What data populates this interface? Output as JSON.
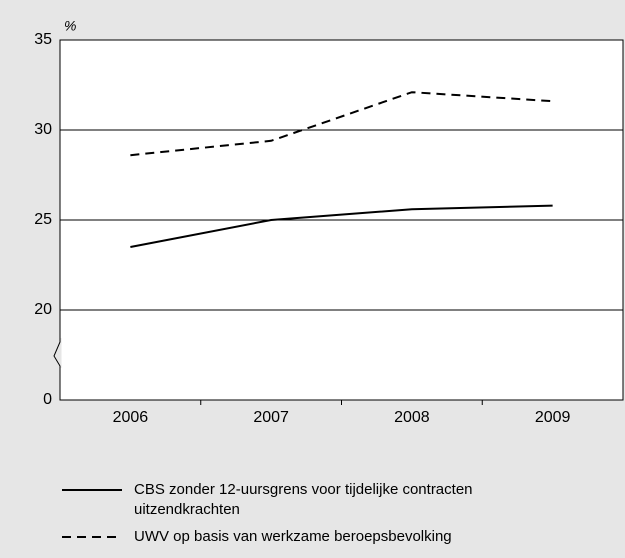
{
  "chart_data": {
    "type": "line",
    "y_unit_label": "%",
    "categories": [
      "2006",
      "2007",
      "2008",
      "2009"
    ],
    "series": [
      {
        "name": "CBS zonder 12-uursgrens voor tijdelijke contracten uitzendkrachten",
        "color": "#000000",
        "dashed": false,
        "values": [
          23.5,
          25.0,
          25.6,
          25.8
        ]
      },
      {
        "name": "UWV op basis van werkzame beroepsbevolking",
        "color": "#000000",
        "dashed": true,
        "values": [
          28.6,
          29.4,
          32.1,
          31.6
        ]
      }
    ],
    "ylim": [
      0,
      35
    ],
    "yticks": [
      0,
      20,
      25,
      30,
      35
    ],
    "axis_break": [
      0,
      20
    ],
    "grid": true,
    "legend": "bottom"
  }
}
